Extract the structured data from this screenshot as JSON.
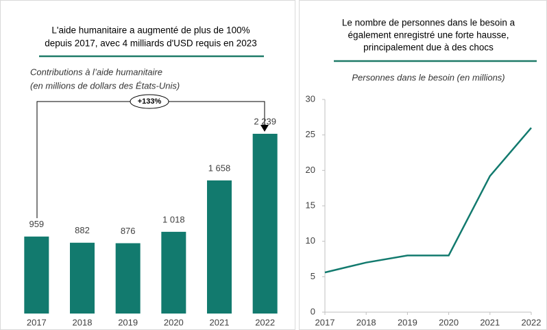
{
  "chart_data": [
    {
      "type": "bar",
      "title": [
        "L'aide humanitaire a augmenté de plus de 100%",
        "depuis 2017, avec 4 milliards d'USD requis en 2023"
      ],
      "subtitle": [
        "Contributions à l’aide humanitaire",
        "(en millions de dollars des États-Unis)"
      ],
      "annotation": "+133%",
      "categories": [
        "2017",
        "2018",
        "2019",
        "2020",
        "2021",
        "2022"
      ],
      "values": [
        959,
        882,
        876,
        1018,
        1658,
        2239
      ],
      "value_labels": [
        "959",
        "882",
        "876",
        "1 018",
        "1 658",
        "2 239"
      ],
      "color": "#127a6e"
    },
    {
      "type": "line",
      "title": [
        "Le nombre de personnes dans le besoin a",
        "également enregistré une forte hausse,",
        "principalement due à des chocs"
      ],
      "subtitle": "Personnes dans le besoin (en millions)",
      "x": [
        2017,
        2018,
        2019,
        2020,
        2021,
        2022
      ],
      "values": [
        5.6,
        7,
        8,
        8,
        19.2,
        26
      ],
      "xlim": [
        2017,
        2022
      ],
      "xticks": [
        2017,
        2018,
        2019,
        2020,
        2021,
        2022
      ],
      "ylim": [
        0,
        30
      ],
      "yticks": [
        0,
        5,
        10,
        15,
        20,
        25,
        30
      ],
      "color": "#127a6e"
    }
  ]
}
